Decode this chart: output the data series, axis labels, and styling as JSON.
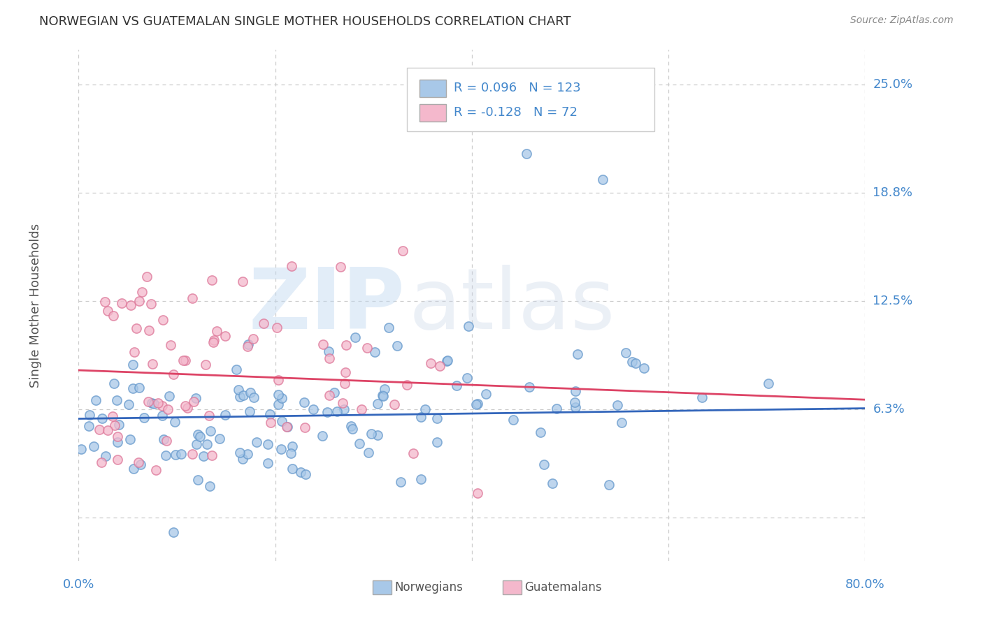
{
  "title": "NORWEGIAN VS GUATEMALAN SINGLE MOTHER HOUSEHOLDS CORRELATION CHART",
  "source": "Source: ZipAtlas.com",
  "ylabel": "Single Mother Households",
  "norwegian_color": "#a8c8e8",
  "norwegian_edge_color": "#6699cc",
  "guatemalan_color": "#f4b8cc",
  "guatemalan_edge_color": "#dd7799",
  "norwegian_line_color": "#3366bb",
  "guatemalan_line_color": "#dd4466",
  "legend_norwegian_R": "0.096",
  "legend_norwegian_N": "123",
  "legend_guatemalan_R": "-0.128",
  "legend_guatemalan_N": "72",
  "watermark_zip": "ZIP",
  "watermark_atlas": "atlas",
  "background_color": "#ffffff",
  "grid_color": "#cccccc",
  "title_color": "#333333",
  "right_label_color": "#4488cc",
  "bottom_label_color": "#4488cc",
  "source_color": "#888888",
  "ylabel_color": "#555555",
  "xmin": 0.0,
  "xmax": 0.8,
  "ymin": -0.025,
  "ymax": 0.27,
  "ytick_vals": [
    0.0,
    0.0625,
    0.125,
    0.1875,
    0.25
  ],
  "ytick_labels": [
    "",
    "6.3%",
    "12.5%",
    "18.8%",
    "25.0%"
  ]
}
